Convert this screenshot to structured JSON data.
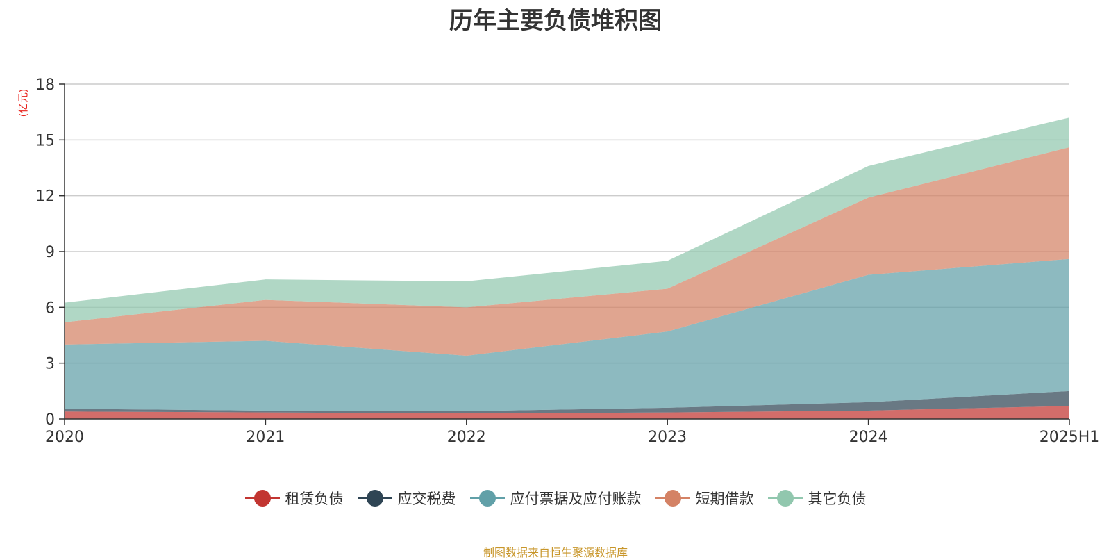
{
  "title": "历年主要负债堆积图",
  "unit_label": "(亿元)",
  "source_note": "制图数据来自恒生聚源数据库",
  "colors": {
    "title": "#333333",
    "unit_label": "#e8221c",
    "source_note": "#c8962a",
    "axis": "#333333",
    "grid": "#cccccc"
  },
  "legend": [
    {
      "name": "租赁负债",
      "color": "#c23531"
    },
    {
      "name": "应交税费",
      "color": "#2f4554"
    },
    {
      "name": "应付票据及应付账款",
      "color": "#61a0a8"
    },
    {
      "name": "短期借款",
      "color": "#d48265"
    },
    {
      "name": "其它负债",
      "color": "#91c7ae"
    }
  ],
  "chart_data": {
    "type": "area",
    "stacked": true,
    "title": "历年主要负债堆积图",
    "ylabel": "(亿元)",
    "categories": [
      "2020",
      "2021",
      "2022",
      "2023",
      "2024",
      "2025H1"
    ],
    "ylim": [
      0,
      18
    ],
    "yticks": [
      0,
      3,
      6,
      9,
      12,
      15,
      18
    ],
    "grid": true,
    "legend_position": "bottom",
    "series": [
      {
        "name": "租赁负债",
        "color": "#c23531",
        "values": [
          0.4,
          0.35,
          0.3,
          0.35,
          0.45,
          0.7
        ]
      },
      {
        "name": "应交税费",
        "color": "#2f4554",
        "values": [
          0.15,
          0.1,
          0.12,
          0.25,
          0.45,
          0.8
        ]
      },
      {
        "name": "应付票据及应付账款",
        "color": "#61a0a8",
        "values": [
          3.45,
          3.75,
          2.98,
          4.1,
          6.85,
          7.1
        ]
      },
      {
        "name": "短期借款",
        "color": "#d48265",
        "values": [
          1.2,
          2.2,
          2.6,
          2.3,
          4.15,
          6.0
        ]
      },
      {
        "name": "其它负债",
        "color": "#91c7ae",
        "values": [
          1.05,
          1.1,
          1.4,
          1.5,
          1.7,
          1.6
        ]
      }
    ]
  }
}
